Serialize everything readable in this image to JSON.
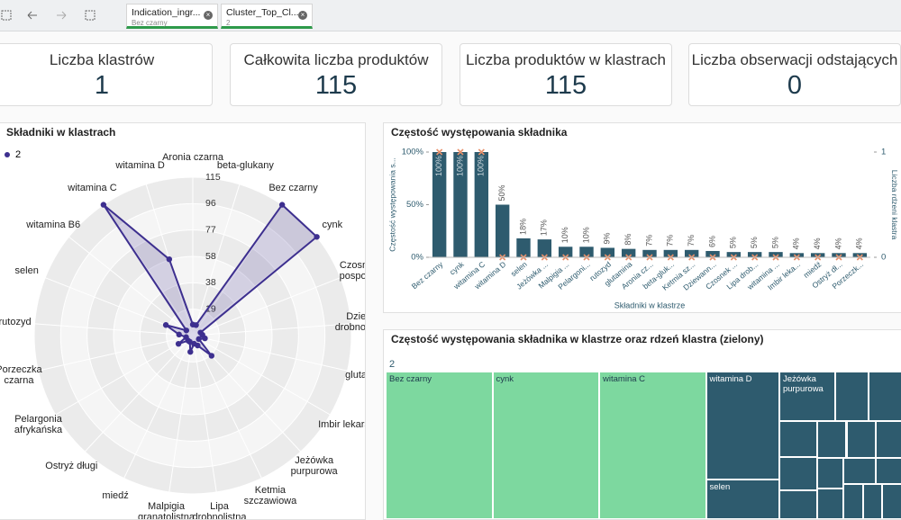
{
  "tabs": [
    {
      "title": "Indication_ingr...",
      "subtitle": "Bez czarny"
    },
    {
      "title": "Cluster_Top_Cl...",
      "subtitle": "2"
    }
  ],
  "kpis": [
    {
      "label": "Liczba klastrów",
      "value": 1
    },
    {
      "label": "Całkowita liczba produktów",
      "value": 115
    },
    {
      "label": "Liczba produktów w klastrach",
      "value": 115
    },
    {
      "label": "Liczba obserwacji odstających",
      "value": 0
    }
  ],
  "chart_data": [
    {
      "type": "radar",
      "title": "Składniki w klastrach",
      "categories": [
        "Aronia czarna",
        "beta-glukany",
        "Bez czarny",
        "cynk",
        "Czosnek pospolity",
        "Dziewanna drobnokwiatowa",
        "glutamina",
        "Imbir lekarski",
        "Jeżówka purpurowa",
        "Ketmia szczawiowa",
        "Lipa drobnolistna",
        "Malpigia granatolistna",
        "miedź",
        "Ostryż długi",
        "Pelargonia afrykańska",
        "Porzeczka czarna",
        "rutozyd",
        "selen",
        "witamina B6",
        "witamina C",
        "witamina D"
      ],
      "series": [
        {
          "name": "2",
          "color": "#3d2f8f",
          "values": [
            8,
            8,
            115,
            115,
            6,
            7,
            9,
            5,
            20,
            8,
            6,
            12,
            5,
            5,
            12,
            5,
            10,
            21,
            6,
            115,
            58
          ]
        }
      ],
      "rlim": [
        0,
        115
      ],
      "rticks": [
        {
          "value": 19.1667,
          "label": "19"
        },
        {
          "value": 38.3333,
          "label": "38"
        },
        {
          "value": 57.5,
          "label": "58"
        },
        {
          "value": 76.6667,
          "label": "77"
        },
        {
          "value": 95.8333,
          "label": "96"
        },
        115
      ],
      "legend": "top-left"
    },
    {
      "type": "bar",
      "title": "Częstość występowania składnika",
      "xlabel": "Składniki w klastrze",
      "ylabel": "Częstość występowania s...",
      "y2label": "Liczba rdzeni klastra",
      "categories": [
        "Bez czarny",
        "cynk",
        "witamina C",
        "witamina D",
        "selen",
        "Jeżówka ...",
        "Malpigia ...",
        "Pelargoni...",
        "rutozyd",
        "glutamina",
        "Aronia cz...",
        "beta-gluk...",
        "Ketmia sz...",
        "Dziewann...",
        "Czosnek ...",
        "Lipa drob...",
        "witamina ...",
        "Imbir leka...",
        "miedź",
        "Ostryż dł...",
        "Porzeczk..."
      ],
      "series": [
        {
          "color": "#2e5b6e",
          "values": [
            100,
            100,
            100,
            50,
            18,
            17,
            10,
            10,
            9,
            8,
            7,
            7,
            7,
            6,
            5,
            5,
            5,
            4,
            4,
            4,
            4
          ],
          "value_labels": [
            "100%",
            "100%",
            "100%",
            "50%",
            "18%",
            "17%",
            "10%",
            "10%",
            "9%",
            "8%",
            "7%",
            "7%",
            "7%",
            "6%",
            "5%",
            "5%",
            "5%",
            "4%",
            "4%",
            "4%",
            "4%"
          ]
        },
        {
          "color": "#e8906a",
          "axis": "y2",
          "marker": "x",
          "values": [
            1,
            1,
            1,
            0,
            0,
            0,
            0,
            0,
            0,
            0,
            0,
            0,
            0,
            0,
            0,
            0,
            0,
            0,
            0,
            0,
            0
          ]
        }
      ],
      "ylim": [
        0,
        100
      ],
      "yticks": [
        {
          "value": 0,
          "label": "0%"
        },
        {
          "value": 50,
          "label": "50%"
        },
        {
          "value": 100,
          "label": "100%"
        }
      ],
      "y2lim": [
        0,
        1
      ],
      "y2ticks": [
        0,
        1
      ]
    },
    {
      "type": "treemap",
      "title": "Częstość występowania składnika w klastrze oraz rdzeń klastra (zielony)",
      "group": "2",
      "names": [
        "Bez czarny",
        "cynk",
        "witamina C",
        "witamina D",
        "selen",
        "Jeżówka purpurowa",
        null,
        null,
        null,
        null,
        null,
        null,
        null,
        null,
        null,
        null,
        null,
        null,
        null,
        null,
        null
      ],
      "values": [
        115,
        115,
        115,
        58,
        21,
        20,
        12,
        12,
        10,
        9,
        8,
        8,
        8,
        7,
        6,
        6,
        6,
        5,
        5,
        5,
        5
      ],
      "core": [
        true,
        true,
        true,
        false,
        false,
        false,
        false,
        false,
        false,
        false,
        false,
        false,
        false,
        false,
        false,
        false,
        false,
        false,
        false,
        false,
        false
      ],
      "core_color": "#7dd89f",
      "color": "#2e5b6e"
    }
  ]
}
